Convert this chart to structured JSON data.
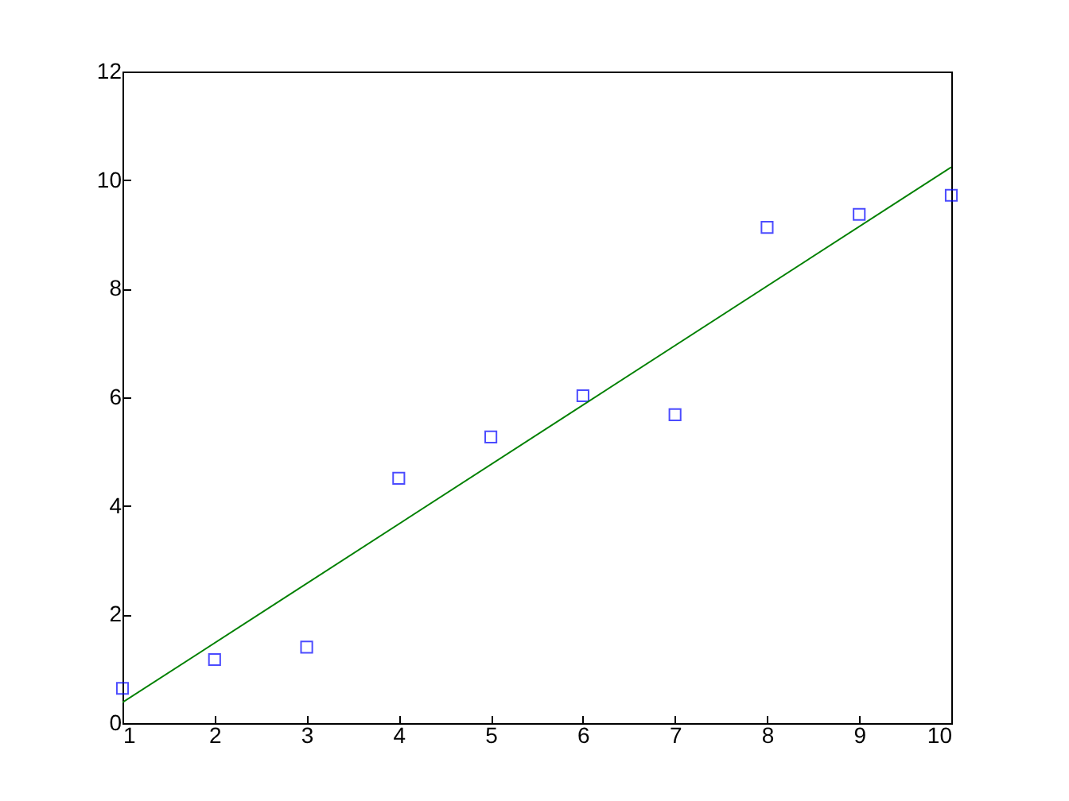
{
  "chart_data": {
    "type": "scatter",
    "xlim": [
      1,
      10
    ],
    "xticks": [
      1,
      2,
      3,
      4,
      5,
      6,
      7,
      8,
      9,
      10
    ],
    "ylim": [
      0,
      12
    ],
    "yticks": [
      0,
      2,
      4,
      6,
      8,
      10,
      12
    ],
    "grid": false,
    "series": [
      {
        "marker": "square",
        "color": "#0000ff",
        "x": [
          1,
          2,
          3,
          4,
          5,
          6,
          7,
          8,
          9,
          10
        ],
        "values": [
          0.64,
          1.17,
          1.4,
          4.51,
          5.27,
          6.03,
          5.68,
          9.13,
          9.37,
          9.72
        ]
      },
      {
        "type": "line",
        "marker": "none",
        "color": "#008000",
        "x": [
          1,
          10
        ],
        "values": [
          0.38,
          10.24
        ]
      }
    ]
  }
}
